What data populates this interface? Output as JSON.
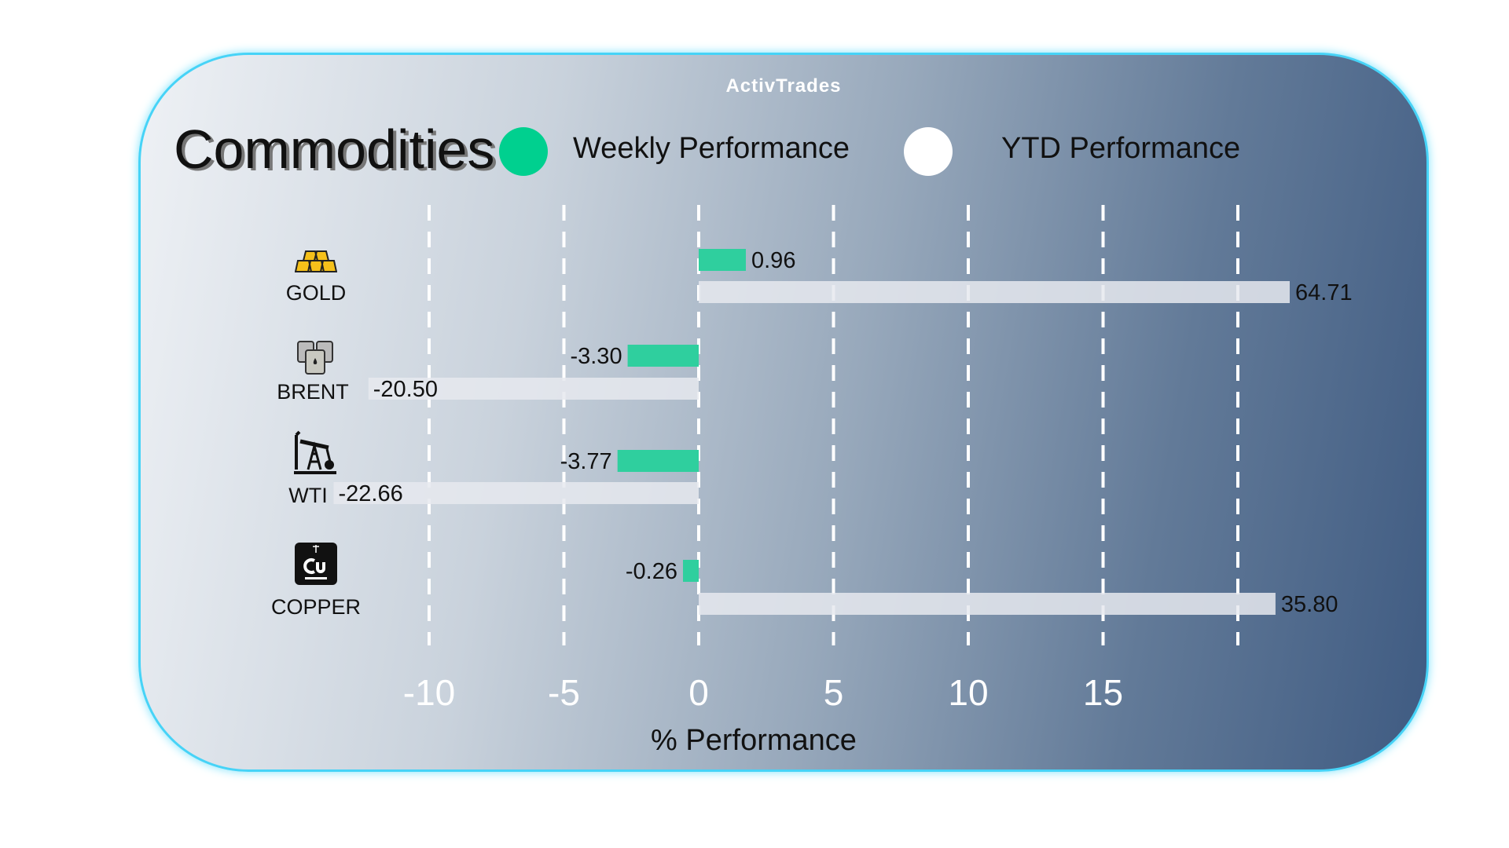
{
  "brand": "ActivTrades",
  "chart_data": {
    "type": "bar",
    "orientation": "horizontal",
    "title": "Commodities",
    "xlabel": "% Performance",
    "x_ticks": [
      "-10",
      "-5",
      "0",
      "5",
      "10",
      "15"
    ],
    "gridlines": [
      -10,
      -5,
      0,
      5,
      10,
      15,
      20
    ],
    "grid": true,
    "legend_placement": "top",
    "categories": [
      "GOLD",
      "BRENT",
      "WTI",
      "COPPER"
    ],
    "category_icons": [
      "gold-bars-icon",
      "oil-barrels-icon",
      "oil-pump-icon",
      "copper-element-icon"
    ],
    "series": [
      {
        "name": "Weekly Performance",
        "color": "#2fcf9e",
        "values": [
          0.96,
          -3.3,
          -3.77,
          -0.26
        ],
        "labels": [
          "0.96",
          "-3.30",
          "-3.77",
          "-0.26"
        ]
      },
      {
        "name": "YTD Performance",
        "color": "#e6e9ee",
        "values": [
          64.71,
          -20.5,
          -22.66,
          35.8
        ],
        "labels": [
          "64.71",
          "-20.50",
          "-22.66",
          "35.80"
        ]
      }
    ]
  },
  "colors": {
    "border": "#46d3f7",
    "weekly_dot": "#00d08f",
    "ytd_dot": "#ffffff"
  }
}
